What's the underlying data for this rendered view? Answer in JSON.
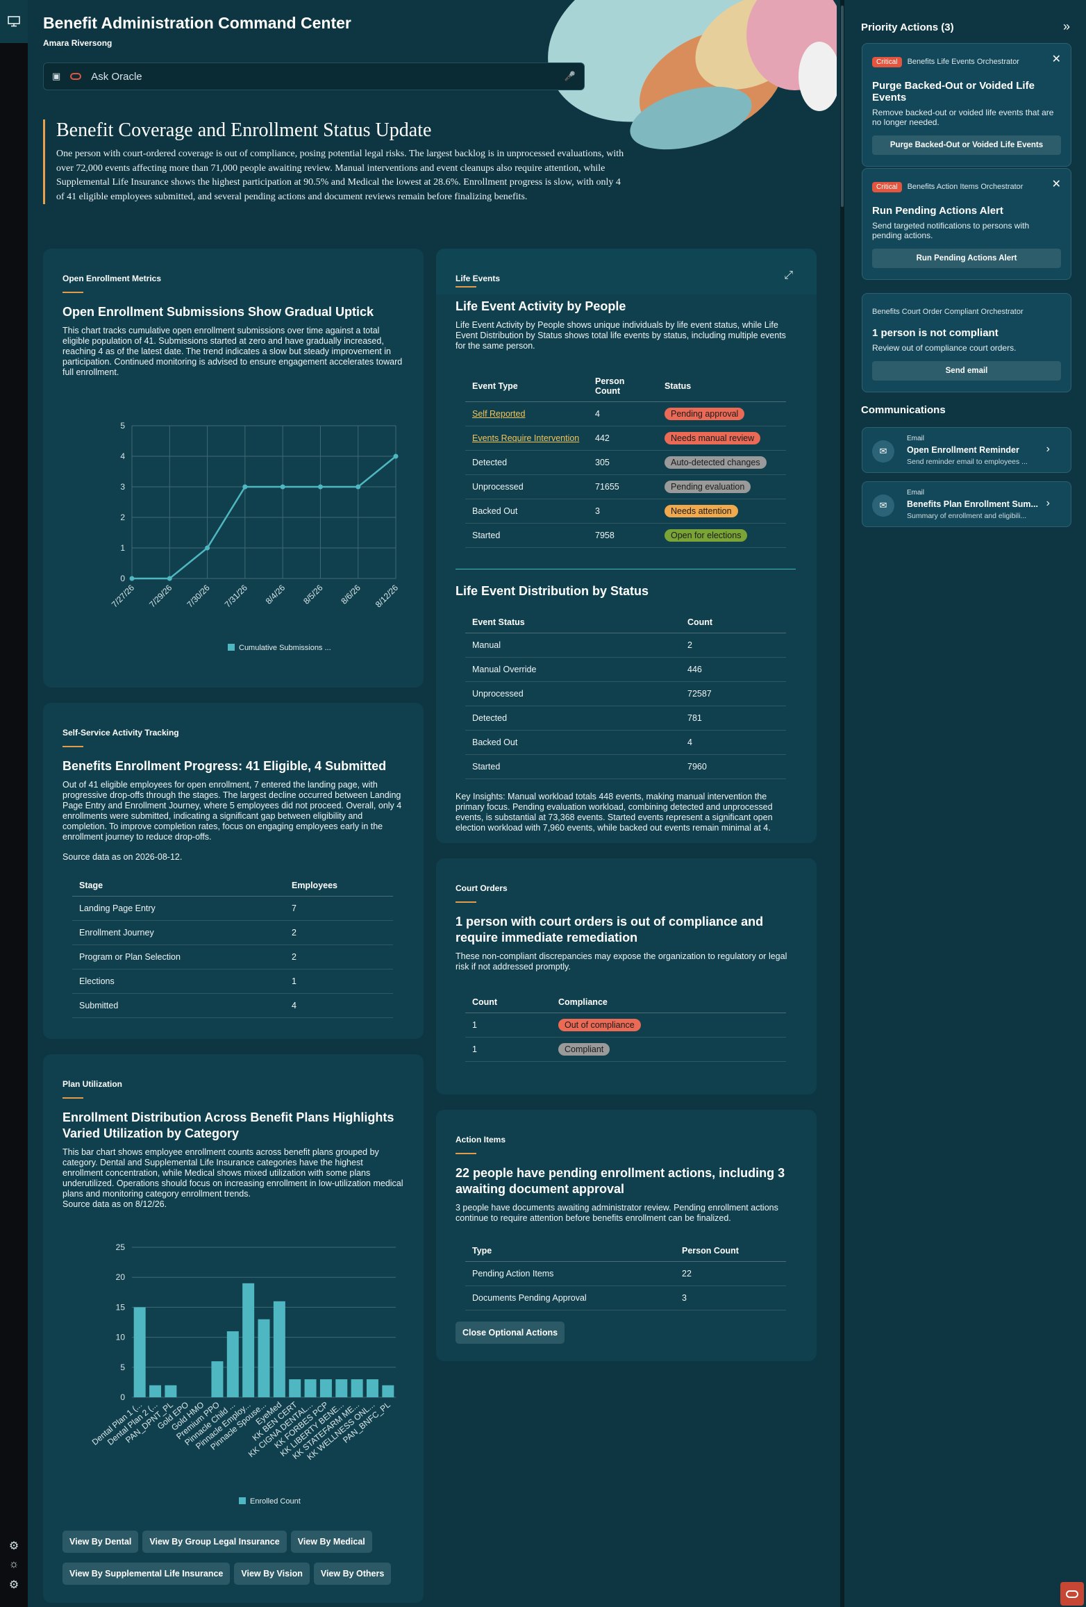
{
  "header": {
    "title": "Benefit Administration Command Center",
    "user": "Amara Riversong",
    "ask_placeholder": "Ask Oracle"
  },
  "summary": {
    "title": "Benefit Coverage and Enrollment Status Update",
    "text": "One person with court-ordered coverage is out of compliance, posing potential legal risks. The largest backlog is in unprocessed evaluations, with over 72,000 events affecting more than 71,000 people awaiting review. Manual interventions and event cleanups also require attention, while Supplemental Life Insurance shows the highest participation at 90.5% and Medical the lowest at 28.6%. Enrollment progress is slow, with only 4 of 41 eligible employees submitted, and several pending actions and document reviews remain before finalizing benefits."
  },
  "open_enrollment": {
    "label": "Open Enrollment Metrics",
    "title": "Open Enrollment Submissions Show Gradual Uptick",
    "desc": "This chart tracks cumulative open enrollment submissions over time against a total eligible population of 41. Submissions started at zero and have gradually increased, reaching 4 as of the latest date. The trend indicates a slow but steady improvement in participation. Continued monitoring is advised to ensure engagement accelerates toward full enrollment.",
    "legend": "Cumulative Submissions ..."
  },
  "self_service": {
    "label": "Self-Service Activity Tracking",
    "title": "Benefits Enrollment Progress: 41 Eligible, 4 Submitted",
    "desc": "Out of 41 eligible employees for open enrollment, 7 entered the landing page, with progressive drop-offs through the stages. The largest decline occurred between Landing Page Entry and Enrollment Journey, where 5 employees did not proceed. Overall, only 4 enrollments were submitted, indicating a significant gap between eligibility and completion. To improve completion rates, focus on engaging employees early in the enrollment journey to reduce drop-offs.",
    "source": "Source data as on 2026-08-12.",
    "col_stage": "Stage",
    "col_employees": "Employees",
    "rows": [
      {
        "stage": "Landing Page Entry",
        "employees": "7"
      },
      {
        "stage": "Enrollment Journey",
        "employees": "2"
      },
      {
        "stage": "Program or Plan Selection",
        "employees": "2"
      },
      {
        "stage": "Elections",
        "employees": "1"
      },
      {
        "stage": "Submitted",
        "employees": "4"
      }
    ]
  },
  "plan_utilization": {
    "label": "Plan Utilization",
    "title": "Enrollment Distribution Across Benefit Plans Highlights Varied Utilization by Category",
    "desc": "This bar chart shows employee enrollment counts across benefit plans grouped by category. Dental and Supplemental Life Insurance categories have the highest enrollment concentration, while Medical shows mixed utilization with some plans underutilized. Operations should focus on increasing enrollment in low-utilization medical plans and monitoring category enrollment trends.",
    "source": "Source data as on 8/12/26.",
    "legend": "Enrolled Count",
    "buttons": [
      "View By Dental",
      "View By Group Legal Insurance",
      "View By Medical",
      "View By Supplemental Life Insurance",
      "View By Vision",
      "View By Others"
    ]
  },
  "life_events": {
    "label": "Life Events",
    "title": "Life Event Activity by People",
    "desc": "Life Event Activity by People shows unique individuals by life event status, while Life Event Distribution by Status shows total life events by status, including multiple events for the same person.",
    "col_type": "Event Type",
    "col_count": "Person Count",
    "col_status": "Status",
    "rows": [
      {
        "type": "Self Reported",
        "count": "4",
        "status": "Pending approval",
        "color": "#ea6a56",
        "link": true
      },
      {
        "type": "Events Require Intervention",
        "count": "442",
        "status": "Needs manual review",
        "color": "#ea6a56",
        "link": true
      },
      {
        "type": "Detected",
        "count": "305",
        "status": "Auto-detected changes",
        "color": "#9a9a9a",
        "link": false
      },
      {
        "type": "Unprocessed",
        "count": "71655",
        "status": "Pending evaluation",
        "color": "#9a9a9a",
        "link": false
      },
      {
        "type": "Backed Out",
        "count": "3",
        "status": "Needs attention",
        "color": "#f0a94c",
        "link": false
      },
      {
        "type": "Started",
        "count": "7958",
        "status": "Open for elections",
        "color": "#7ba436",
        "link": false
      }
    ],
    "dist_title": "Life Event Distribution by Status",
    "col_event_status": "Event Status",
    "col_dist_count": "Count",
    "dist_rows": [
      {
        "status": "Manual",
        "count": "2"
      },
      {
        "status": "Manual Override",
        "count": "446"
      },
      {
        "status": "Unprocessed",
        "count": "72587"
      },
      {
        "status": "Detected",
        "count": "781"
      },
      {
        "status": "Backed Out",
        "count": "4"
      },
      {
        "status": "Started",
        "count": "7960"
      }
    ],
    "insights": "Key Insights: Manual workload totals 448 events, making manual intervention the primary focus. Pending evaluation workload, combining detected and unprocessed events, is substantial at 73,368 events. Started events represent a significant open election workload with 7,960 events, while backed out events remain minimal at 4."
  },
  "court_orders": {
    "label": "Court Orders",
    "title": "1 person with court orders is out of compliance and require immediate remediation",
    "desc": "These non-compliant discrepancies may expose the organization to regulatory or legal risk if not addressed promptly.",
    "col_count": "Count",
    "col_compliance": "Compliance",
    "rows": [
      {
        "count": "1",
        "compliance": "Out of compliance",
        "color": "#ea6a56"
      },
      {
        "count": "1",
        "compliance": "Compliant",
        "color": "#9a9a9a"
      }
    ]
  },
  "action_items": {
    "label": "Action Items",
    "title": "22 people have pending enrollment actions, including 3 awaiting document approval",
    "desc": "3 people have documents awaiting administrator review. Pending enrollment actions continue to require attention before benefits enrollment can be finalized.",
    "col_type": "Type",
    "col_count": "Person Count",
    "rows": [
      {
        "type": "Pending Action Items",
        "count": "22"
      },
      {
        "type": "Documents Pending Approval",
        "count": "3"
      }
    ],
    "button": "Close Optional Actions"
  },
  "side": {
    "title": "Priority Actions (3)",
    "cards": [
      {
        "badge": "Critical",
        "orchestrator": "Benefits Life Events Orchestrator",
        "title": "Purge Backed-Out or Voided Life Events",
        "desc": "Remove backed-out or voided life events that are no longer needed.",
        "button": "Purge Backed-Out or Voided Life Events"
      },
      {
        "badge": "Critical",
        "orchestrator": "Benefits Action Items Orchestrator",
        "title": "Run Pending Actions Alert",
        "desc": "Send targeted notifications to persons with pending actions.",
        "button": "Run Pending Actions Alert"
      },
      {
        "badge": "",
        "orchestrator": "Benefits Court Order Compliant Orchestrator",
        "title": "1 person is not compliant",
        "desc": "Review out of compliance court orders.",
        "button": "Send email"
      }
    ],
    "comm_title": "Communications",
    "comms": [
      {
        "type": "Email",
        "name": "Open Enrollment Reminder",
        "sub": "Send reminder email to employees ..."
      },
      {
        "type": "Email",
        "name": "Benefits Plan Enrollment Sum...",
        "sub": "Summary of enrollment and eligibili..."
      }
    ]
  },
  "colors": {
    "accent": "#e59b4a",
    "series": "#4fb7c1",
    "critical": "#e2553f"
  },
  "chart_data": [
    {
      "type": "line",
      "title": "",
      "x": [
        "7/27/26",
        "7/29/26",
        "7/30/26",
        "7/31/26",
        "8/4/26",
        "8/5/26",
        "8/6/26",
        "8/12/26"
      ],
      "series": [
        {
          "name": "Cumulative Submissions ...",
          "values": [
            0,
            0,
            1,
            3,
            3,
            3,
            3,
            4
          ]
        }
      ],
      "ylim": [
        0,
        5
      ],
      "yticks": [
        0,
        1,
        2,
        3,
        4,
        5
      ],
      "grid": true,
      "legend": "bottom"
    },
    {
      "type": "bar",
      "title": "",
      "categories": [
        "Dental Plan 1 (...",
        "Dental Plan 2 (...",
        "PAN_DPNT_PL",
        "Gold EPO",
        "Gold HMO",
        "Premium PPO",
        "Pinnacle Child ...",
        "Pinnacle Employ...",
        "Pinnacle Spouse...",
        "EyeMed",
        "KK BEN CERT",
        "KK CIGNA DENTAL...",
        "KK FORBES PCP",
        "KK LIBERTY BENE...",
        "KK STATEFARM ME...",
        "KK WELLNESS ONL...",
        "PAN_BNFC_PL"
      ],
      "series": [
        {
          "name": "Enrolled Count",
          "values": [
            15,
            2,
            2,
            0,
            0,
            6,
            11,
            19,
            13,
            16,
            3,
            3,
            3,
            3,
            3,
            3,
            2
          ]
        }
      ],
      "ylim": [
        0,
        25
      ],
      "yticks": [
        0,
        5,
        10,
        15,
        20,
        25
      ],
      "grid": true,
      "legend": "bottom"
    }
  ]
}
